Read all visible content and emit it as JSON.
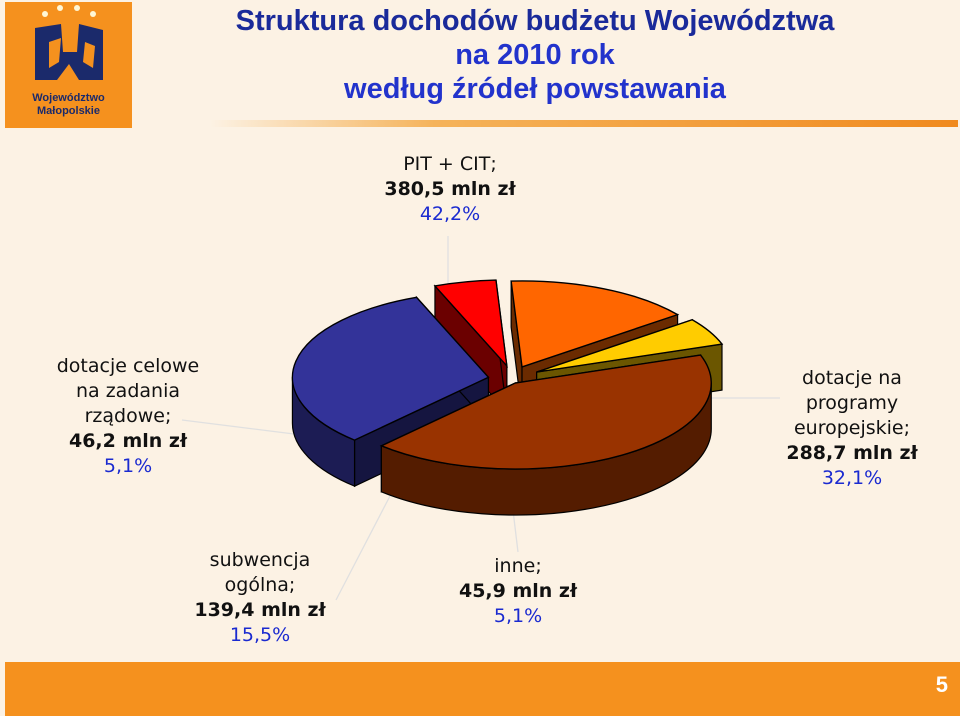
{
  "header": {
    "title_line1": "Struktura dochodów budżetu Województwa",
    "title_line2": "na 2010 rok",
    "title_line3": "według źródeł powstawania"
  },
  "logo": {
    "name_line1": "Województwo",
    "name_line2": "Małopolskie"
  },
  "chart_data": {
    "type": "pie",
    "style": "3d-exploded",
    "slices": [
      {
        "label": "PIT + CIT",
        "value": 380.5,
        "value_text": "380,5 mln zł",
        "percent": 42.2,
        "percent_text": "42,2%",
        "color": "#993300"
      },
      {
        "label": "dotacje na programy europejskie",
        "value": 288.7,
        "value_text": "288,7 mln zł",
        "percent": 32.1,
        "percent_text": "32,1%",
        "color": "#333399"
      },
      {
        "label": "inne",
        "value": 45.9,
        "value_text": "45,9 mln zł",
        "percent": 5.1,
        "percent_text": "5,1%",
        "color": "#ff0000"
      },
      {
        "label": "subwencja ogólna",
        "value": 139.4,
        "value_text": "139,4 mln zł",
        "percent": 15.5,
        "percent_text": "15,5%",
        "color": "#ff6600"
      },
      {
        "label": "dotacje celowe na zadania rządowe",
        "value": 46.2,
        "value_text": "46,2 mln zł",
        "percent": 5.1,
        "percent_text": "5,1%",
        "color": "#ffcc00"
      }
    ],
    "labels": {
      "pit": {
        "name": "PIT + CIT;",
        "value": "380,5 mln zł",
        "percent": "42,2%"
      },
      "eu": {
        "name1": "dotacje na",
        "name2": "programy",
        "name3": "europejskie;",
        "value": "288,7 mln zł",
        "percent": "32,1%"
      },
      "inne": {
        "name": "inne;",
        "value": "45,9 mln zł",
        "percent": "5,1%"
      },
      "subw": {
        "name1": "subwencja",
        "name2": "ogólna;",
        "value": "139,4 mln zł",
        "percent": "15,5%"
      },
      "celowe": {
        "name1": "dotacje celowe",
        "name2": "na zadania",
        "name3": "rządowe;",
        "value": "46,2 mln zł",
        "percent": "5,1%"
      }
    }
  },
  "footer": {
    "page_number": "5"
  }
}
